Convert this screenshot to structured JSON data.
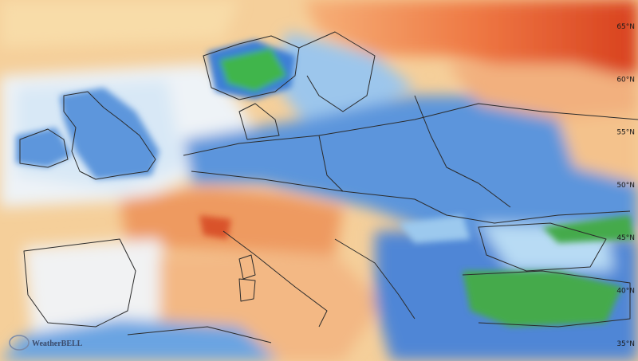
{
  "map": {
    "latitude_labels": [
      "65°N",
      "60°N",
      "55°N",
      "50°N",
      "45°N",
      "40°N",
      "35°N"
    ],
    "logo": "WeatherBELL"
  }
}
